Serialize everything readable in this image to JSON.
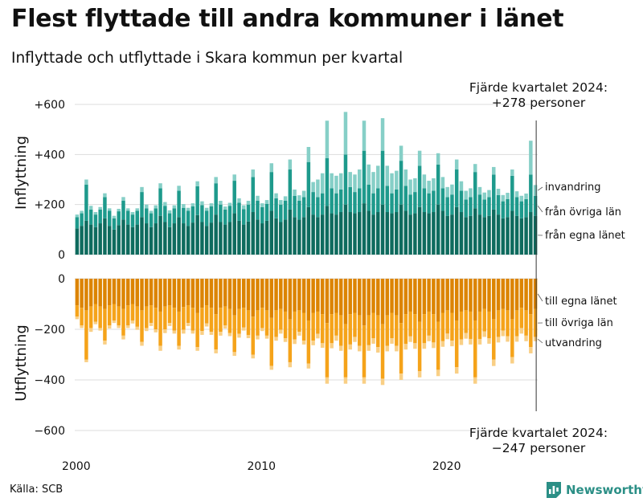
{
  "title": "Flest flyttade till andra kommuner i länet",
  "subtitle": "Inflyttade och utflyttade i Skara kommun per kvartal",
  "source": "Källa: SCB",
  "brand": "Newsworthy",
  "annotations": {
    "in_period": "Fjärde kvartalet 2024:",
    "in_value": "+278 personer",
    "out_period": "Fjärde kvartalet 2024:",
    "out_value": "−247 personer"
  },
  "colors": {
    "in_local": "#0e6b5e",
    "in_region": "#1e9a8c",
    "in_foreign": "#86cfc7",
    "out_local": "#dc8400",
    "out_region": "#f5a31a",
    "out_foreign": "#f9cf85",
    "text": "#111111",
    "grid": "#dddddd",
    "brand": "#2b8f86"
  },
  "chart_data": [
    {
      "type": "bar",
      "stacked": true,
      "title": "Inflyttade",
      "ylabel": "Inflyttning",
      "ylim": [
        0,
        600
      ],
      "yticks": [
        0,
        200,
        400,
        600
      ],
      "ytick_labels": [
        "0",
        "+200",
        "+400",
        "+600"
      ],
      "xticks": [
        2000,
        2010,
        2020
      ],
      "x": [
        "2000 K1",
        "2000 K2",
        "2000 K3",
        "2000 K4",
        "2001 K1",
        "2001 K2",
        "2001 K3",
        "2001 K4",
        "2002 K1",
        "2002 K2",
        "2002 K3",
        "2002 K4",
        "2003 K1",
        "2003 K2",
        "2003 K3",
        "2003 K4",
        "2004 K1",
        "2004 K2",
        "2004 K3",
        "2004 K4",
        "2005 K1",
        "2005 K2",
        "2005 K3",
        "2005 K4",
        "2006 K1",
        "2006 K2",
        "2006 K3",
        "2006 K4",
        "2007 K1",
        "2007 K2",
        "2007 K3",
        "2007 K4",
        "2008 K1",
        "2008 K2",
        "2008 K3",
        "2008 K4",
        "2009 K1",
        "2009 K2",
        "2009 K3",
        "2009 K4",
        "2010 K1",
        "2010 K2",
        "2010 K3",
        "2010 K4",
        "2011 K1",
        "2011 K2",
        "2011 K3",
        "2011 K4",
        "2012 K1",
        "2012 K2",
        "2012 K3",
        "2012 K4",
        "2013 K1",
        "2013 K2",
        "2013 K3",
        "2013 K4",
        "2014 K1",
        "2014 K2",
        "2014 K3",
        "2014 K4",
        "2015 K1",
        "2015 K2",
        "2015 K3",
        "2015 K4",
        "2016 K1",
        "2016 K2",
        "2016 K3",
        "2016 K4",
        "2017 K1",
        "2017 K2",
        "2017 K3",
        "2017 K4",
        "2018 K1",
        "2018 K2",
        "2018 K3",
        "2018 K4",
        "2019 K1",
        "2019 K2",
        "2019 K3",
        "2019 K4",
        "2020 K1",
        "2020 K2",
        "2020 K3",
        "2020 K4",
        "2021 K1",
        "2021 K2",
        "2021 K3",
        "2021 K4",
        "2022 K1",
        "2022 K2",
        "2022 K3",
        "2022 K4",
        "2023 K1",
        "2023 K2",
        "2023 K3",
        "2023 K4",
        "2024 K1",
        "2024 K2",
        "2024 K3",
        "2024 K4"
      ],
      "series": [
        {
          "name": "från egna länet",
          "values": [
            105,
            115,
            135,
            120,
            110,
            125,
            145,
            115,
            100,
            118,
            140,
            120,
            110,
            120,
            150,
            125,
            110,
            125,
            155,
            130,
            110,
            125,
            150,
            125,
            115,
            128,
            158,
            130,
            115,
            128,
            160,
            130,
            120,
            130,
            165,
            135,
            120,
            132,
            170,
            140,
            125,
            135,
            175,
            145,
            130,
            140,
            180,
            150,
            140,
            150,
            190,
            160,
            150,
            160,
            195,
            165,
            160,
            170,
            200,
            170,
            165,
            170,
            205,
            175,
            160,
            170,
            200,
            170,
            165,
            170,
            200,
            175,
            160,
            165,
            190,
            170,
            165,
            170,
            200,
            175,
            155,
            160,
            190,
            170,
            150,
            155,
            185,
            160,
            150,
            155,
            180,
            160,
            145,
            150,
            175,
            155,
            145,
            150,
            170,
            155
          ]
        },
        {
          "name": "från övriga län",
          "values": [
            45,
            50,
            145,
            60,
            50,
            55,
            85,
            60,
            45,
            55,
            75,
            55,
            50,
            55,
            100,
            60,
            55,
            60,
            110,
            65,
            55,
            60,
            105,
            62,
            60,
            65,
            115,
            68,
            60,
            65,
            125,
            70,
            60,
            65,
            130,
            72,
            62,
            68,
            140,
            75,
            65,
            68,
            155,
            80,
            70,
            75,
            160,
            85,
            75,
            80,
            180,
            90,
            80,
            85,
            190,
            100,
            85,
            90,
            200,
            100,
            85,
            95,
            210,
            105,
            85,
            95,
            215,
            105,
            80,
            90,
            175,
            100,
            80,
            85,
            165,
            95,
            80,
            85,
            160,
            90,
            75,
            80,
            150,
            85,
            70,
            75,
            145,
            80,
            70,
            75,
            140,
            78,
            68,
            72,
            140,
            75,
            68,
            72,
            150,
            80
          ]
        },
        {
          "name": "invandring",
          "values": [
            10,
            10,
            20,
            15,
            10,
            10,
            15,
            10,
            10,
            10,
            15,
            10,
            10,
            10,
            20,
            15,
            10,
            12,
            20,
            15,
            12,
            12,
            20,
            15,
            12,
            12,
            20,
            15,
            12,
            12,
            25,
            15,
            12,
            12,
            25,
            18,
            15,
            15,
            30,
            20,
            15,
            15,
            35,
            20,
            18,
            18,
            40,
            25,
            22,
            25,
            60,
            40,
            70,
            80,
            150,
            60,
            70,
            65,
            170,
            60,
            70,
            75,
            120,
            80,
            85,
            90,
            130,
            80,
            80,
            75,
            60,
            65,
            60,
            55,
            60,
            55,
            50,
            50,
            45,
            45,
            40,
            40,
            40,
            38,
            35,
            35,
            32,
            30,
            28,
            28,
            30,
            25,
            25,
            25,
            25,
            23,
            22,
            22,
            135,
            43
          ]
        }
      ]
    },
    {
      "type": "bar",
      "stacked": true,
      "title": "Utflyttade",
      "ylabel": "Utflyttning",
      "ylim": [
        -650,
        0
      ],
      "yticks": [
        0,
        -200,
        -400,
        -600
      ],
      "ytick_labels": [
        "0",
        "−200",
        "−400",
        "−600"
      ],
      "xticks": [
        2000,
        2010,
        2020
      ],
      "x": [
        "2000 K1",
        "2000 K2",
        "2000 K3",
        "2000 K4",
        "2001 K1",
        "2001 K2",
        "2001 K3",
        "2001 K4",
        "2002 K1",
        "2002 K2",
        "2002 K3",
        "2002 K4",
        "2003 K1",
        "2003 K2",
        "2003 K3",
        "2003 K4",
        "2004 K1",
        "2004 K2",
        "2004 K3",
        "2004 K4",
        "2005 K1",
        "2005 K2",
        "2005 K3",
        "2005 K4",
        "2006 K1",
        "2006 K2",
        "2006 K3",
        "2006 K4",
        "2007 K1",
        "2007 K2",
        "2007 K3",
        "2007 K4",
        "2008 K1",
        "2008 K2",
        "2008 K3",
        "2008 K4",
        "2009 K1",
        "2009 K2",
        "2009 K3",
        "2009 K4",
        "2010 K1",
        "2010 K2",
        "2010 K3",
        "2010 K4",
        "2011 K1",
        "2011 K2",
        "2011 K3",
        "2011 K4",
        "2012 K1",
        "2012 K2",
        "2012 K3",
        "2012 K4",
        "2013 K1",
        "2013 K2",
        "2013 K3",
        "2013 K4",
        "2014 K1",
        "2014 K2",
        "2014 K3",
        "2014 K4",
        "2015 K1",
        "2015 K2",
        "2015 K3",
        "2015 K4",
        "2016 K1",
        "2016 K2",
        "2016 K3",
        "2016 K4",
        "2017 K1",
        "2017 K2",
        "2017 K3",
        "2017 K4",
        "2018 K1",
        "2018 K2",
        "2018 K3",
        "2018 K4",
        "2019 K1",
        "2019 K2",
        "2019 K3",
        "2019 K4",
        "2020 K1",
        "2020 K2",
        "2020 K3",
        "2020 K4",
        "2021 K1",
        "2021 K2",
        "2021 K3",
        "2021 K4",
        "2022 K1",
        "2022 K2",
        "2022 K3",
        "2022 K4",
        "2023 K1",
        "2023 K2",
        "2023 K3",
        "2023 K4",
        "2024 K1",
        "2024 K2",
        "2024 K3",
        "2024 K4"
      ],
      "series": [
        {
          "name": "till egna länet",
          "values": [
            -105,
            -115,
            -125,
            -110,
            -100,
            -110,
            -120,
            -105,
            -100,
            -110,
            -120,
            -105,
            -100,
            -110,
            -125,
            -110,
            -105,
            -115,
            -130,
            -110,
            -105,
            -115,
            -130,
            -112,
            -105,
            -115,
            -135,
            -115,
            -105,
            -115,
            -140,
            -115,
            -110,
            -120,
            -145,
            -120,
            -115,
            -125,
            -150,
            -125,
            -115,
            -125,
            -155,
            -125,
            -120,
            -130,
            -160,
            -130,
            -125,
            -135,
            -165,
            -135,
            -130,
            -140,
            -175,
            -140,
            -135,
            -145,
            -180,
            -140,
            -135,
            -145,
            -185,
            -145,
            -135,
            -145,
            -180,
            -145,
            -135,
            -145,
            -175,
            -140,
            -130,
            -140,
            -170,
            -140,
            -130,
            -140,
            -170,
            -135,
            -125,
            -135,
            -165,
            -130,
            -125,
            -130,
            -165,
            -130,
            -120,
            -130,
            -160,
            -125,
            -120,
            -125,
            -160,
            -125,
            -115,
            -125,
            -140,
            -120
          ]
        },
        {
          "name": "till övriga län",
          "values": [
            -45,
            -70,
            -195,
            -85,
            -70,
            -85,
            -125,
            -80,
            -65,
            -75,
            -105,
            -80,
            -65,
            -80,
            -125,
            -85,
            -70,
            -85,
            -135,
            -90,
            -70,
            -90,
            -135,
            -90,
            -70,
            -90,
            -135,
            -92,
            -72,
            -95,
            -140,
            -95,
            -75,
            -95,
            -145,
            -98,
            -78,
            -98,
            -150,
            -100,
            -80,
            -100,
            -190,
            -105,
            -82,
            -105,
            -170,
            -110,
            -85,
            -110,
            -170,
            -110,
            -88,
            -115,
            -215,
            -115,
            -90,
            -120,
            -210,
            -120,
            -95,
            -120,
            -205,
            -118,
            -100,
            -125,
            -215,
            -120,
            -100,
            -120,
            -200,
            -118,
            -98,
            -115,
            -195,
            -115,
            -95,
            -112,
            -190,
            -112,
            -92,
            -110,
            -185,
            -110,
            -90,
            -108,
            -225,
            -108,
            -88,
            -105,
            -160,
            -105,
            -85,
            -102,
            -150,
            -102,
            -80,
            -100,
            -130,
            -110
          ]
        },
        {
          "name": "utvandring",
          "values": [
            -10,
            -10,
            -10,
            -15,
            -10,
            -10,
            -15,
            -12,
            -10,
            -10,
            -15,
            -10,
            -12,
            -12,
            -15,
            -12,
            -12,
            -12,
            -20,
            -15,
            -12,
            -12,
            -15,
            -15,
            -12,
            -12,
            -15,
            -15,
            -12,
            -12,
            -15,
            -15,
            -12,
            -12,
            -15,
            -15,
            -12,
            -12,
            -15,
            -15,
            -12,
            -12,
            -15,
            -15,
            -15,
            -15,
            -20,
            -18,
            -15,
            -15,
            -20,
            -18,
            -18,
            -18,
            -25,
            -20,
            -20,
            -20,
            -25,
            -20,
            -20,
            -22,
            -25,
            -22,
            -22,
            -22,
            -25,
            -22,
            -22,
            -22,
            -25,
            -22,
            -22,
            -22,
            -25,
            -22,
            -22,
            -22,
            -25,
            -22,
            -22,
            -22,
            -25,
            -22,
            -22,
            -22,
            -25,
            -22,
            -22,
            -22,
            -25,
            -22,
            -22,
            -22,
            -25,
            -22,
            -22,
            -22,
            -25,
            -17
          ]
        }
      ]
    }
  ],
  "legend": {
    "in_foreign": "invandring",
    "in_region": "från övriga län",
    "in_local": "från egna länet",
    "out_local": "till egna länet",
    "out_region": "till övriga län",
    "out_foreign": "utvandring"
  }
}
